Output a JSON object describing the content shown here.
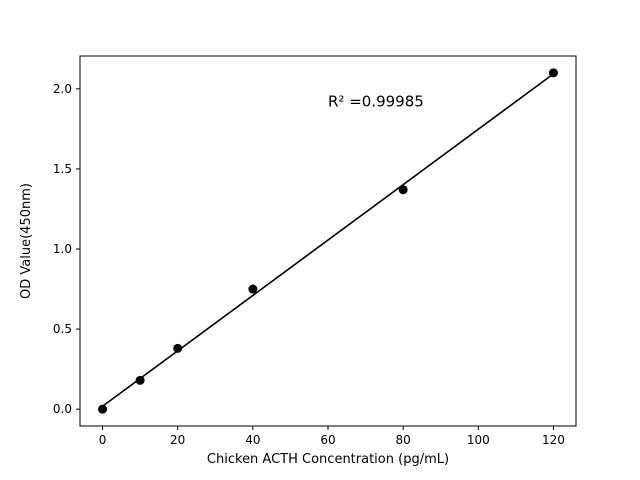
{
  "chart_data": {
    "type": "scatter",
    "title": "",
    "xlabel": "Chicken ACTH Concentration (pg/mL)",
    "ylabel": "OD Value(450nm)",
    "x": [
      0,
      10,
      20,
      40,
      80,
      120
    ],
    "y": [
      0.0,
      0.18,
      0.38,
      0.75,
      1.37,
      2.1
    ],
    "fit_line": true,
    "annotation": {
      "text": "R² =0.99985",
      "x": 60,
      "y": 1.89
    },
    "xlim": [
      -6,
      126
    ],
    "ylim": [
      -0.105,
      2.205
    ],
    "xticks": [
      0,
      20,
      40,
      60,
      80,
      100,
      120
    ],
    "xtick_labels": [
      "0",
      "20",
      "40",
      "60",
      "80",
      "100",
      "120"
    ],
    "yticks": [
      0.0,
      0.5,
      1.0,
      1.5,
      2.0
    ],
    "ytick_labels": [
      "0.0",
      "0.5",
      "1.0",
      "1.5",
      "2.0"
    ],
    "grid": false,
    "legend": null,
    "marker_color": "#000000",
    "line_color": "#000000",
    "background": "#ffffff"
  }
}
